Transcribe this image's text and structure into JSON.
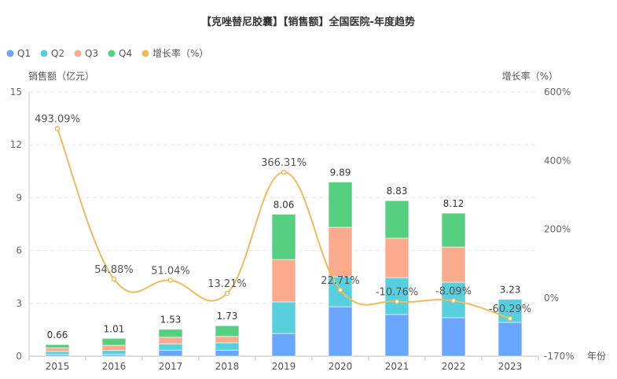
{
  "chart_data": {
    "type": "bar",
    "title": "【克唑替尼胶囊】【销售额】全国医院-年度趋势",
    "xlabel": "年份",
    "ylabel": "销售额（亿元）",
    "y2label": "增长率（%）",
    "categories": [
      "2015",
      "2016",
      "2017",
      "2018",
      "2019",
      "2020",
      "2021",
      "2022",
      "2023"
    ],
    "ylim": [
      0,
      15
    ],
    "yticks": [
      "0",
      "3",
      "6",
      "9",
      "12",
      "15"
    ],
    "y2lim": [
      -170,
      600
    ],
    "y2ticks": [
      "-170%",
      "0%",
      "200%",
      "400%",
      "600%"
    ],
    "grid": true,
    "legend_position": "top-left",
    "series": [
      {
        "name": "Q1",
        "color": "#6aa6fd",
        "values": [
          0.1,
          0.1,
          0.34,
          0.34,
          1.29,
          2.81,
          2.37,
          2.19,
          1.92
        ]
      },
      {
        "name": "Q2",
        "color": "#58cfdd",
        "values": [
          0.17,
          0.23,
          0.36,
          0.42,
          1.79,
          1.7,
          2.09,
          2.01,
          1.31
        ]
      },
      {
        "name": "Q3",
        "color": "#fbab8d",
        "values": [
          0.2,
          0.29,
          0.38,
          0.37,
          2.41,
          2.81,
          2.24,
          2.0,
          0
        ]
      },
      {
        "name": "Q4",
        "color": "#57cf80",
        "values": [
          0.19,
          0.39,
          0.45,
          0.6,
          2.57,
          2.57,
          2.13,
          1.92,
          0
        ]
      }
    ],
    "totals": [
      "0.66",
      "1.01",
      "1.53",
      "1.73",
      "8.06",
      "9.89",
      "8.83",
      "8.12",
      "3.23"
    ],
    "total_values": [
      0.66,
      1.01,
      1.53,
      1.73,
      8.06,
      9.89,
      8.83,
      8.12,
      3.23
    ],
    "growth": {
      "name": "增长率（%）",
      "color": "#eebb5c",
      "values": [
        493.09,
        54.88,
        51.04,
        13.21,
        366.31,
        22.71,
        -10.76,
        -8.09,
        -60.29
      ],
      "labels": [
        "493.09%",
        "54.88%",
        "51.04%",
        "13.21%",
        "366.31%",
        "22.71%",
        "-10.76%",
        "-8.09%",
        "-60.29%"
      ]
    }
  }
}
